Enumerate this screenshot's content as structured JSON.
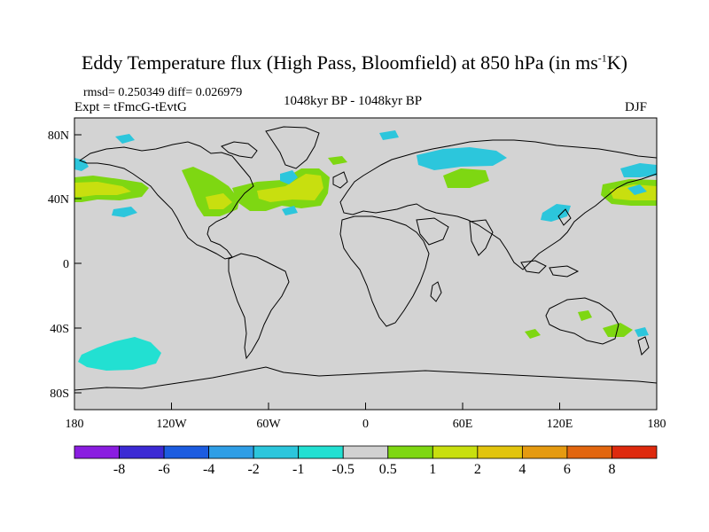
{
  "title": {
    "prefix": "Eddy Temperature flux (High Pass, Bloomfield) at 850 hPa (in ms",
    "sup": "-1",
    "suffix": "K)"
  },
  "header": {
    "stats": "rmsd= 0.250349 diff= 0.026979",
    "expt": "Expt = tFmcG-tEvtG",
    "period": "1048kyr BP - 1048kyr BP",
    "season": "DJF"
  },
  "axes": {
    "y_ticks": [
      "80N",
      "40N",
      "0",
      "40S",
      "80S"
    ],
    "x_ticks": [
      "180",
      "120W",
      "60W",
      "0",
      "60E",
      "120E",
      "180"
    ]
  },
  "colorbar": {
    "labels": [
      "-8",
      "-6",
      "-4",
      "-2",
      "-1",
      "-0.5",
      "0.5",
      "1",
      "2",
      "4",
      "6",
      "8"
    ],
    "colors": [
      "#8a1de0",
      "#3c2ad4",
      "#1c5ce0",
      "#2f9ee6",
      "#2cc6dc",
      "#22e0d2",
      "#d1d1d1",
      "#7ed712",
      "#c8df0f",
      "#e2c40d",
      "#e59a10",
      "#e2660f",
      "#de2a0e"
    ]
  },
  "map_style": {
    "background": "#d3d3d3",
    "coastline": "#000000"
  }
}
